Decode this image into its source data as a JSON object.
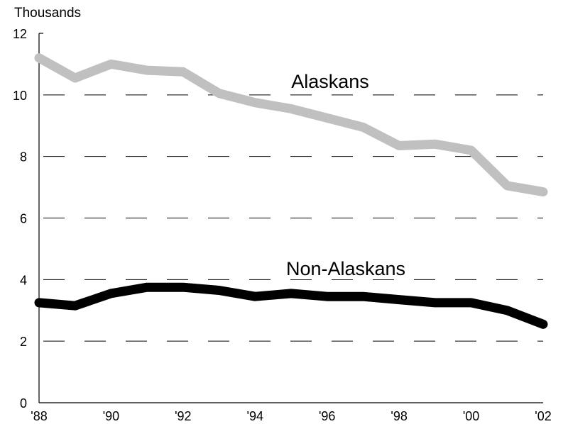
{
  "chart_data": {
    "type": "line",
    "units_label": "Thousands",
    "x": [
      1988,
      1989,
      1990,
      1991,
      1992,
      1993,
      1994,
      1995,
      1996,
      1997,
      1998,
      1999,
      2000,
      2001,
      2002
    ],
    "x_tick_labels": [
      "'88",
      "'90",
      "'92",
      "'94",
      "'96",
      "'98",
      "'00",
      "'02"
    ],
    "y_ticks": [
      0,
      2,
      4,
      6,
      8,
      10,
      12
    ],
    "ylim": [
      0,
      12
    ],
    "xlim": [
      1988,
      2002
    ],
    "grid": "dashed horizontal",
    "series": [
      {
        "name": "Alaskans",
        "color": "#c0c0c0",
        "values": [
          11.2,
          10.55,
          11.0,
          10.8,
          10.75,
          10.05,
          9.75,
          9.55,
          9.25,
          8.95,
          8.35,
          8.4,
          8.2,
          7.05,
          6.85
        ]
      },
      {
        "name": "Non-Alaskans",
        "color": "#000000",
        "values": [
          3.25,
          3.15,
          3.55,
          3.75,
          3.75,
          3.65,
          3.45,
          3.55,
          3.45,
          3.45,
          3.35,
          3.25,
          3.25,
          3.0,
          2.55
        ]
      }
    ]
  }
}
